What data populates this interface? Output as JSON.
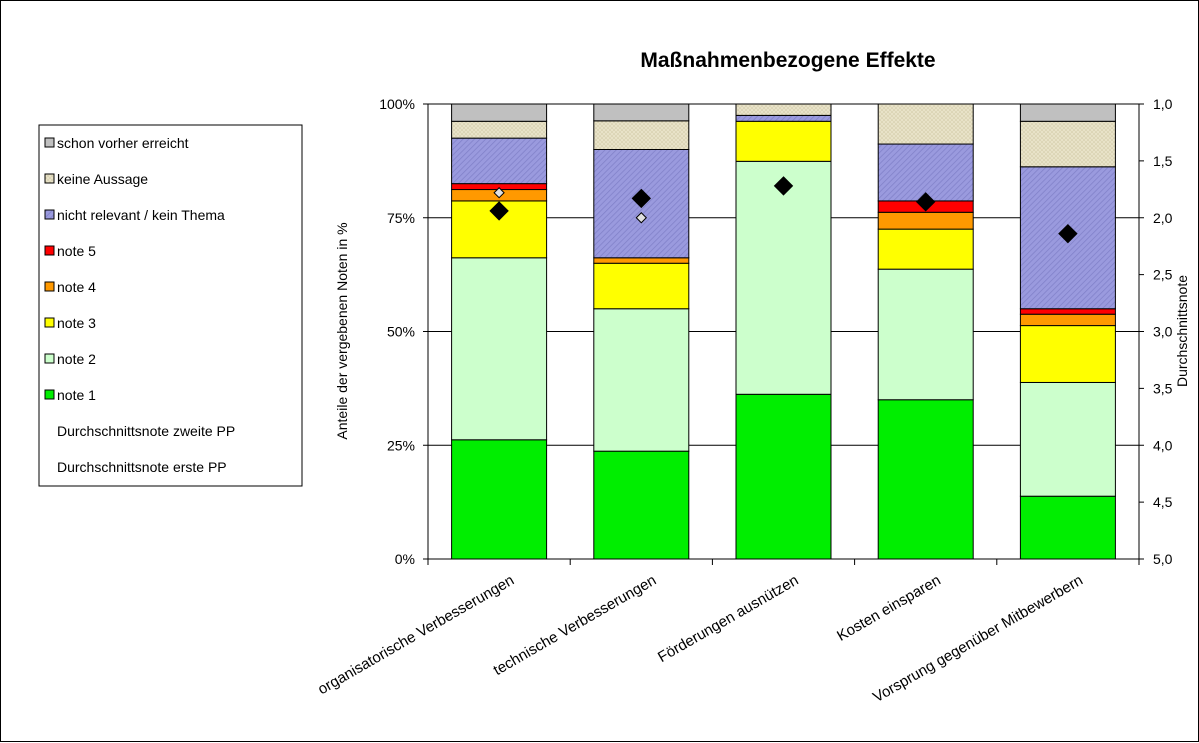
{
  "chart_data": {
    "type": "bar",
    "stacked": true,
    "title": "Maßnahmenbezogene Effekte",
    "ylabel": "Anteile der vergebenen Noten in %",
    "y2label": "Durchschnittsnote",
    "ylim": [
      0,
      100
    ],
    "y2lim": [
      1.0,
      5.0
    ],
    "y_ticks": [
      "0%",
      "25%",
      "50%",
      "75%",
      "100%"
    ],
    "y2_ticks": [
      "1,0",
      "1,5",
      "2,0",
      "2,5",
      "3,0",
      "3,5",
      "4,0",
      "4,5",
      "5,0"
    ],
    "legend_position": "left",
    "categories": [
      "organisatorische Verbesserungen",
      "technische Verbesserungen",
      "Förderungen ausnützen",
      "Kosten einsparen",
      "Vorsprung gegenüber Mitbewerbern"
    ],
    "series": [
      {
        "name": "note 1",
        "color": "#00ee00",
        "values": [
          26.2,
          23.7,
          36.2,
          35.0,
          13.8
        ]
      },
      {
        "name": "note 2",
        "color": "#ccffcc",
        "values": [
          40.0,
          31.3,
          51.2,
          28.7,
          25.0
        ]
      },
      {
        "name": "note 3",
        "color": "#ffff00",
        "values": [
          12.5,
          10.0,
          8.8,
          8.8,
          12.5
        ]
      },
      {
        "name": "note 4",
        "color": "#ff9900",
        "values": [
          2.5,
          1.2,
          0,
          3.7,
          2.5
        ]
      },
      {
        "name": "note 5",
        "color": "#ff0000",
        "values": [
          1.3,
          0,
          0,
          2.5,
          1.2
        ]
      },
      {
        "name": "nicht relevant / kein Thema",
        "color": "#9999dd",
        "pattern": "hatch",
        "values": [
          10.0,
          23.8,
          1.3,
          12.5,
          31.2
        ]
      },
      {
        "name": "keine Aussage",
        "color": "#e2dcc0",
        "pattern": "dots",
        "values": [
          3.7,
          6.3,
          2.5,
          8.8,
          10.0
        ]
      },
      {
        "name": "schon vorher erreicht",
        "color": "#c0c0c0",
        "values": [
          3.8,
          3.7,
          0,
          0,
          3.8
        ]
      }
    ],
    "markers": [
      {
        "name": "Durchschnittsnote zweite PP",
        "shape": "diamond",
        "color": "#000000",
        "values": [
          1.94,
          1.83,
          1.72,
          1.86,
          2.14
        ]
      },
      {
        "name": "Durchschnittsnote erste PP",
        "shape": "diamond-small",
        "color": "#c0c0c0",
        "values": [
          1.78,
          2.0,
          null,
          null,
          null
        ]
      }
    ]
  }
}
